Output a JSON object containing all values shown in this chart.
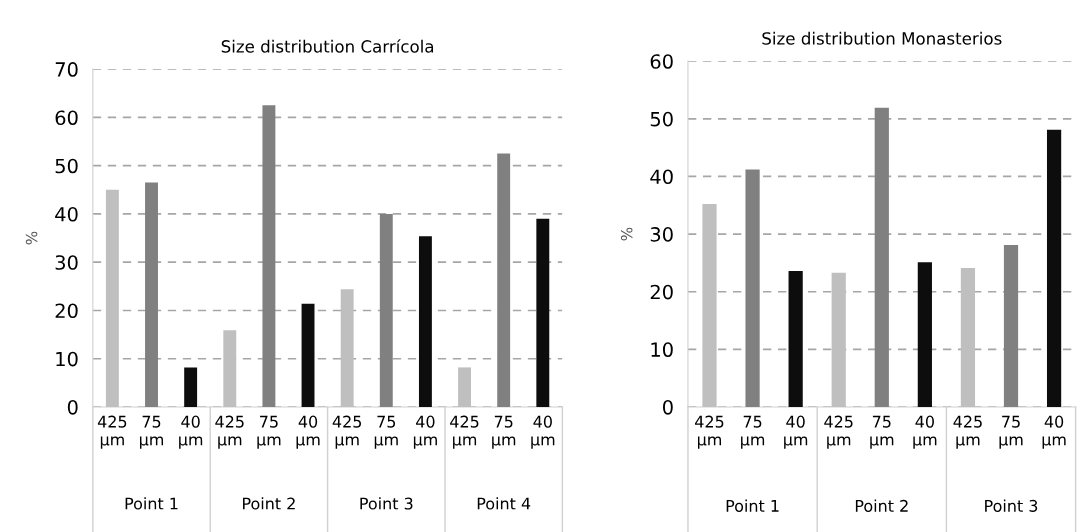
{
  "chart_data": [
    {
      "type": "bar",
      "title": "Size distribution Carrícola",
      "ylabel": "%",
      "categories": [
        "425 µm",
        "75 µm",
        "40 µm",
        "425 µm",
        "75 µm",
        "40 µm",
        "425 µm",
        "75 µm",
        "40 µm",
        "425 µm",
        "75 µm",
        "40 µm"
      ],
      "values": [
        45,
        46.5,
        8.2,
        15.9,
        62.5,
        21.4,
        24.4,
        40,
        35.4,
        8.2,
        52.5,
        39
      ],
      "colors": [
        "#bfbfbf",
        "#808080",
        "#0d0d0d",
        "#bfbfbf",
        "#808080",
        "#0d0d0d",
        "#bfbfbf",
        "#808080",
        "#0d0d0d",
        "#bfbfbf",
        "#808080",
        "#0d0d0d"
      ],
      "ylim": [
        0,
        70
      ],
      "yticks": [
        0,
        10,
        20,
        30,
        40,
        50,
        60,
        70
      ],
      "grid": "y",
      "annotations": [
        "Point 1",
        "Point 2",
        "Point 3",
        "Point 4"
      ]
    },
    {
      "type": "bar",
      "title": "Size distribution Monasterios",
      "ylabel": "%",
      "categories": [
        "425 µm",
        "75 µm",
        "40 µm",
        "425 µm",
        "75 µm",
        "40 µm",
        "425 µm",
        "75 µm",
        "40 µm"
      ],
      "values": [
        35.2,
        41.2,
        23.6,
        23.3,
        51.9,
        25.1,
        24.1,
        28.1,
        48.1
      ],
      "colors": [
        "#bfbfbf",
        "#808080",
        "#0d0d0d",
        "#bfbfbf",
        "#808080",
        "#0d0d0d",
        "#bfbfbf",
        "#808080",
        "#0d0d0d"
      ],
      "ylim": [
        0,
        60
      ],
      "yticks": [
        0,
        10,
        20,
        30,
        40,
        50,
        60
      ],
      "grid": "y",
      "annotations": [
        "Point 1",
        "Point 2",
        "Point 3"
      ]
    }
  ]
}
